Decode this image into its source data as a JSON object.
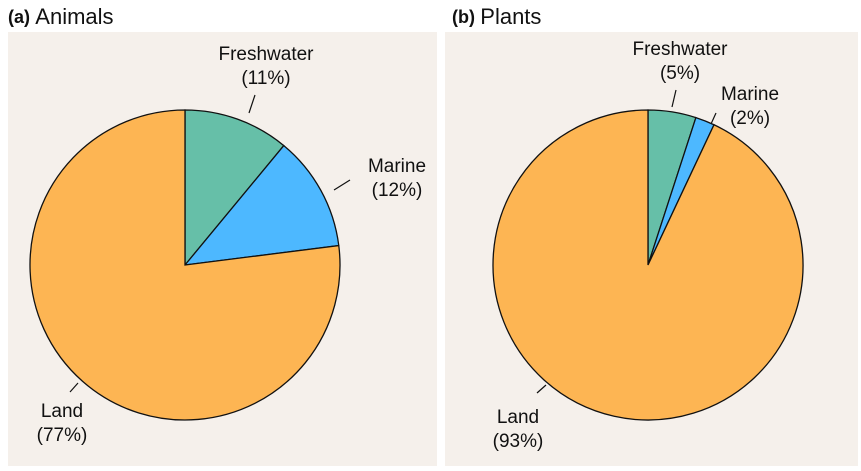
{
  "chart_data": [
    {
      "type": "pie",
      "label": "(a)",
      "title": "Animals",
      "categories": [
        "Freshwater",
        "Marine",
        "Land"
      ],
      "values": [
        11,
        12,
        77
      ],
      "value_labels": [
        "(11%)",
        "(12%)",
        "(77%)"
      ],
      "colors": [
        "#66bfa8",
        "#4db8ff",
        "#fdb553"
      ]
    },
    {
      "type": "pie",
      "label": "(b)",
      "title": "Plants",
      "categories": [
        "Freshwater",
        "Marine",
        "Land"
      ],
      "values": [
        5,
        2,
        93
      ],
      "value_labels": [
        "(5%)",
        "(2%)",
        "(93%)"
      ],
      "colors": [
        "#66bfa8",
        "#4db8ff",
        "#fdb553"
      ]
    }
  ]
}
